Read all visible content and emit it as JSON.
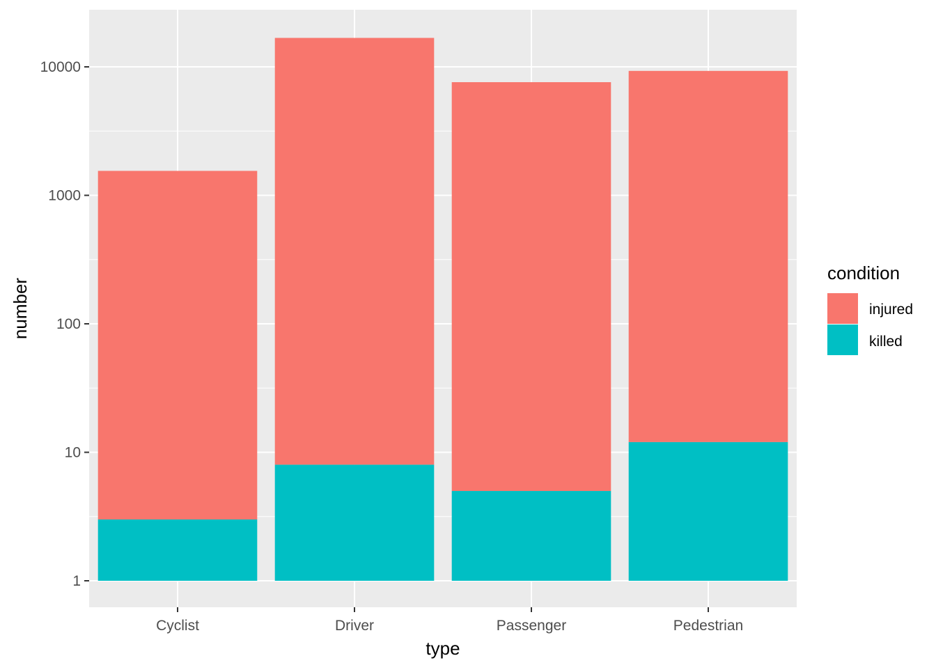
{
  "chart_data": {
    "type": "bar",
    "stacked": true,
    "y_scale": "log10",
    "categories": [
      "Cyclist",
      "Driver",
      "Passenger",
      "Pedestrian"
    ],
    "series": [
      {
        "name": "injured",
        "color": "#F8766D",
        "values": [
          1550,
          16800,
          7600,
          9300
        ]
      },
      {
        "name": "killed",
        "color": "#00BFC4",
        "values": [
          3,
          8,
          5,
          12
        ]
      }
    ],
    "xlabel": "type",
    "ylabel": "number",
    "ylim": [
      0.8,
      24000
    ],
    "yticks": [
      1,
      10,
      100,
      1000,
      10000
    ],
    "ytick_labels": [
      "1",
      "10",
      "100",
      "1000",
      "10000"
    ],
    "legend": {
      "title": "condition",
      "position": "right"
    },
    "grid": true,
    "panel_background": "#EBEBEB"
  }
}
